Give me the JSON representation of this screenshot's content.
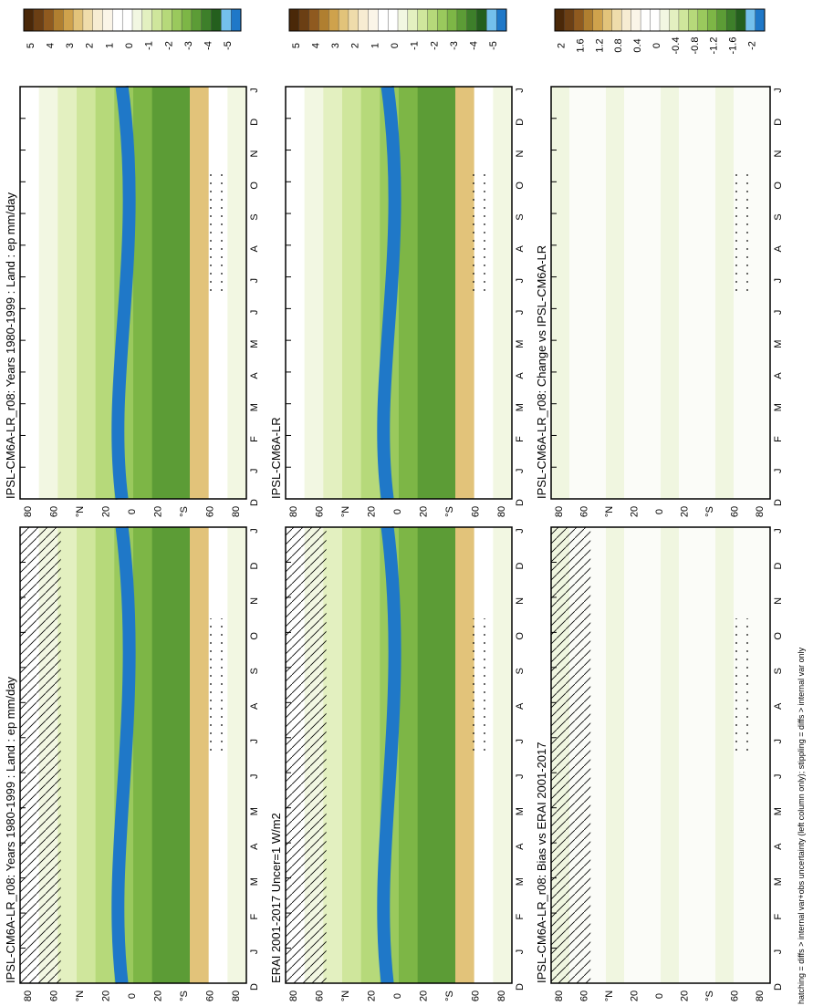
{
  "figure": {
    "footnote": "hatching = diffs > internal var+obs uncertainty (left column only); stippling = diffs > internal var only"
  },
  "chart_data": [
    {
      "type": "heatmap",
      "title": "IPSL-CM6A-LR_r08: Years 1980-1999 : Land : ep mm/day",
      "x_ticks": [
        "D",
        "J",
        "F",
        "M",
        "A",
        "M",
        "J",
        "J",
        "A",
        "S",
        "O",
        "N",
        "D",
        "J"
      ],
      "y_ticks": [
        "80",
        "60",
        "°N",
        "20",
        "0",
        "20",
        "°S",
        "60",
        "80"
      ],
      "colorbar_ticks": [
        "5",
        "4",
        "3",
        "2",
        "1",
        "0",
        "-1",
        "-2",
        "-3",
        "-4",
        "-5"
      ],
      "colorbar_colors": [
        "#4a2808",
        "#6b3f14",
        "#8f5a1f",
        "#b07f30",
        "#cfa24c",
        "#e2c37a",
        "#efdcab",
        "#f7ecd2",
        "#fbf5e8",
        "#ffffff",
        "#ffffff",
        "#f2f7e2",
        "#e3f0c0",
        "#cfe69c",
        "#b6d97a",
        "#9ac95d",
        "#7db646",
        "#5c9c36",
        "#3d7f2a",
        "#245f1e",
        "#74c0ec",
        "#1f78c8"
      ],
      "hatching": true,
      "stippling": true
    },
    {
      "type": "heatmap",
      "title": "IPSL-CM6A-LR_r08: Years 1980-1999 : Land : ep mm/day",
      "x_ticks": [
        "D",
        "J",
        "F",
        "M",
        "A",
        "M",
        "J",
        "J",
        "A",
        "S",
        "O",
        "N",
        "D",
        "J"
      ],
      "y_ticks": [
        "80",
        "60",
        "°N",
        "20",
        "0",
        "20",
        "°S",
        "60",
        "80"
      ],
      "colorbar_ticks": [
        "5",
        "4",
        "3",
        "2",
        "1",
        "0",
        "-1",
        "-2",
        "-3",
        "-4",
        "-5"
      ],
      "hatching": false,
      "stippling": true
    },
    {
      "type": "heatmap",
      "title": "ERAI 2001-2017 Uncer=1 W/m2",
      "x_ticks": [
        "D",
        "J",
        "F",
        "M",
        "A",
        "M",
        "J",
        "J",
        "A",
        "S",
        "O",
        "N",
        "D",
        "J"
      ],
      "y_ticks": [
        "80",
        "60",
        "°N",
        "20",
        "0",
        "20",
        "°S",
        "60",
        "80"
      ],
      "colorbar_ticks": [
        "5",
        "4",
        "3",
        "2",
        "1",
        "0",
        "-1",
        "-2",
        "-3",
        "-4",
        "-5"
      ],
      "hatching": true,
      "stippling": true
    },
    {
      "type": "heatmap",
      "title": "IPSL-CM6A-LR",
      "x_ticks": [
        "D",
        "J",
        "F",
        "M",
        "A",
        "M",
        "J",
        "J",
        "A",
        "S",
        "O",
        "N",
        "D",
        "J"
      ],
      "y_ticks": [
        "80",
        "60",
        "°N",
        "20",
        "0",
        "20",
        "°S",
        "60",
        "80"
      ],
      "colorbar_ticks": [
        "5",
        "4",
        "3",
        "2",
        "1",
        "0",
        "-1",
        "-2",
        "-3",
        "-4",
        "-5"
      ],
      "hatching": false,
      "stippling": true
    },
    {
      "type": "heatmap",
      "title": "IPSL-CM6A-LR_r08: Bias vs ERAI 2001-2017",
      "x_ticks": [
        "D",
        "J",
        "F",
        "M",
        "A",
        "M",
        "J",
        "J",
        "A",
        "S",
        "O",
        "N",
        "D",
        "J"
      ],
      "y_ticks": [
        "80",
        "60",
        "°N",
        "20",
        "0",
        "20",
        "°S",
        "60",
        "80"
      ],
      "colorbar_ticks": [
        "2",
        "1.6",
        "1.2",
        "0.8",
        "0.4",
        "0",
        "-0.4",
        "-0.8",
        "-1.2",
        "-1.6",
        "-2"
      ],
      "hatching": true,
      "stippling": true
    },
    {
      "type": "heatmap",
      "title": "IPSL-CM6A-LR_r08: Change vs IPSL-CM6A-LR",
      "x_ticks": [
        "D",
        "J",
        "F",
        "M",
        "A",
        "M",
        "J",
        "J",
        "A",
        "S",
        "O",
        "N",
        "D",
        "J"
      ],
      "y_ticks": [
        "80",
        "60",
        "°N",
        "20",
        "0",
        "20",
        "°S",
        "60",
        "80"
      ],
      "colorbar_ticks": [
        "2",
        "1.6",
        "1.2",
        "0.8",
        "0.4",
        "0",
        "-0.4",
        "-0.8",
        "-1.2",
        "-1.6",
        "-2"
      ],
      "hatching": false,
      "stippling": true
    }
  ]
}
